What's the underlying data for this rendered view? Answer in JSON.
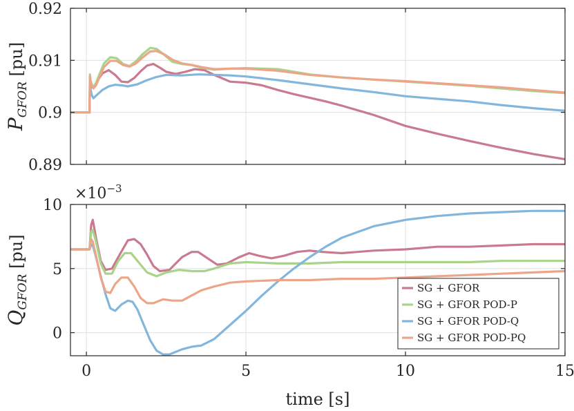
{
  "chart_data": {
    "type": "line",
    "shared_x": {
      "xlabel": "time [s]",
      "xlim": [
        -0.5,
        15
      ],
      "xticks": [
        0,
        5,
        10,
        15
      ],
      "xtick_labels": [
        "0",
        "5",
        "10",
        "15"
      ]
    },
    "legend": {
      "location": "lower-right of bottom panel",
      "entries": [
        "SG + GFOR",
        "SG + GFOR POD-P",
        "SG + GFOR POD-Q",
        "SG + GFOR POD-PQ"
      ]
    },
    "colors": {
      "SG + GFOR": "#c97a8e",
      "SG + GFOR POD-P": "#a9d38b",
      "SG + GFOR POD-Q": "#82b6dc",
      "SG + GFOR POD-PQ": "#eda58a"
    },
    "panels": [
      {
        "id": "top",
        "ylabel_main": "P",
        "ylabel_sub": "GFOR",
        "ylabel_unit": " [pu]",
        "ylim": [
          0.89,
          0.92
        ],
        "yticks": [
          0.89,
          0.9,
          0.91,
          0.92
        ],
        "ytick_labels": [
          "0.89",
          "0.9",
          "0.91",
          "0.92"
        ],
        "grid": true,
        "series": [
          {
            "name": "SG + GFOR",
            "x": [
              -0.5,
              0,
              0.1,
              0.11,
              0.12,
              0.15,
              0.18,
              0.25,
              0.35,
              0.5,
              0.7,
              0.9,
              1.1,
              1.3,
              1.5,
              1.7,
              1.9,
              2.1,
              2.3,
              2.5,
              2.8,
              3.1,
              3.4,
              3.7,
              4.0,
              4.5,
              5.0,
              5.5,
              6.0,
              6.5,
              7.0,
              7.5,
              8.0,
              9,
              10,
              11,
              12,
              13,
              14,
              15
            ],
            "y": [
              0.9,
              0.9,
              0.9,
              0.9067,
              0.9061,
              0.9051,
              0.9048,
              0.9051,
              0.9061,
              0.9075,
              0.9081,
              0.9072,
              0.9059,
              0.9058,
              0.9066,
              0.9079,
              0.909,
              0.9093,
              0.9086,
              0.9078,
              0.9074,
              0.9078,
              0.9083,
              0.9081,
              0.9072,
              0.9059,
              0.9057,
              0.9052,
              0.9043,
              0.9035,
              0.9028,
              0.9021,
              0.9013,
              0.8995,
              0.8974,
              0.8959,
              0.8945,
              0.8932,
              0.892,
              0.891
            ]
          },
          {
            "name": "SG + GFOR POD-Q",
            "x": [
              -0.5,
              0,
              0.1,
              0.11,
              0.13,
              0.17,
              0.22,
              0.3,
              0.5,
              0.7,
              0.9,
              1.1,
              1.3,
              1.6,
              1.9,
              2.2,
              2.5,
              3.0,
              3.5,
              4.0,
              4.5,
              5.0,
              6,
              7,
              8,
              9,
              10,
              11,
              12,
              13,
              14,
              15
            ],
            "y": [
              0.9,
              0.9,
              0.9,
              0.9059,
              0.9045,
              0.9033,
              0.9027,
              0.9032,
              0.9043,
              0.905,
              0.9053,
              0.9052,
              0.905,
              0.9054,
              0.9062,
              0.9068,
              0.9072,
              0.9071,
              0.9073,
              0.9072,
              0.9071,
              0.9069,
              0.9062,
              0.9054,
              0.9046,
              0.9039,
              0.9031,
              0.9026,
              0.9021,
              0.9014,
              0.9008,
              0.9003
            ]
          },
          {
            "name": "SG + GFOR POD-P",
            "x": [
              -0.5,
              0,
              0.1,
              0.11,
              0.13,
              0.17,
              0.22,
              0.3,
              0.4,
              0.55,
              0.75,
              0.95,
              1.15,
              1.35,
              1.55,
              1.75,
              2.0,
              2.2,
              2.45,
              2.7,
              3.0,
              3.3,
              3.6,
              4.0,
              4.5,
              5.0,
              6,
              7,
              8,
              9,
              10,
              11,
              12,
              13,
              14,
              15
            ],
            "y": [
              0.9,
              0.9,
              0.9,
              0.9073,
              0.9062,
              0.9054,
              0.9049,
              0.9056,
              0.9072,
              0.9094,
              0.9106,
              0.9104,
              0.9093,
              0.9089,
              0.9098,
              0.9111,
              0.9124,
              0.9122,
              0.911,
              0.9097,
              0.9093,
              0.9091,
              0.9086,
              0.9082,
              0.9084,
              0.9085,
              0.9083,
              0.9073,
              0.9067,
              0.9063,
              0.9059,
              0.9055,
              0.9051,
              0.9046,
              0.9041,
              0.9037
            ]
          },
          {
            "name": "SG + GFOR POD-PQ",
            "x": [
              -0.5,
              0,
              0.1,
              0.11,
              0.13,
              0.17,
              0.22,
              0.3,
              0.4,
              0.55,
              0.75,
              0.95,
              1.15,
              1.35,
              1.55,
              1.75,
              2.0,
              2.2,
              2.45,
              2.7,
              3.0,
              3.3,
              3.6,
              4.0,
              4.5,
              5.0,
              6,
              7,
              8,
              9,
              10,
              11,
              12,
              13,
              14,
              15
            ],
            "y": [
              0.9,
              0.9,
              0.9,
              0.9069,
              0.9058,
              0.905,
              0.9046,
              0.9052,
              0.9066,
              0.9087,
              0.9099,
              0.9099,
              0.9091,
              0.9088,
              0.9094,
              0.9105,
              0.9117,
              0.9118,
              0.9111,
              0.9101,
              0.9094,
              0.9091,
              0.9087,
              0.9083,
              0.9084,
              0.9084,
              0.908,
              0.9072,
              0.9067,
              0.9063,
              0.906,
              0.9056,
              0.9052,
              0.9048,
              0.9043,
              0.9038
            ]
          }
        ]
      },
      {
        "id": "bottom",
        "ylabel_main": "Q",
        "ylabel_sub": "GFOR",
        "ylabel_unit": " [pu]",
        "exponent_label": "×10",
        "exponent_value": "−3",
        "ylim": [
          -1.8,
          10
        ],
        "yticks": [
          0,
          5,
          10
        ],
        "ytick_labels": [
          "0",
          "5",
          "10"
        ],
        "grid": true,
        "series": [
          {
            "name": "SG + GFOR",
            "x": [
              -0.5,
              0,
              0.1,
              0.15,
              0.2,
              0.3,
              0.45,
              0.6,
              0.8,
              1.0,
              1.3,
              1.5,
              1.7,
              1.9,
              2.1,
              2.3,
              2.6,
              3.0,
              3.3,
              3.5,
              3.8,
              4.1,
              4.4,
              4.8,
              5.1,
              5.4,
              5.8,
              6.2,
              6.6,
              7.0,
              7.4,
              8.0,
              9,
              10,
              11,
              12,
              13,
              14,
              15
            ],
            "y": [
              6.5,
              6.5,
              6.5,
              8.4,
              8.8,
              7.4,
              5.6,
              4.9,
              5.0,
              5.9,
              7.2,
              7.3,
              6.9,
              6.1,
              5.2,
              4.8,
              4.9,
              5.9,
              6.3,
              6.3,
              5.8,
              5.3,
              5.4,
              5.9,
              6.2,
              6.0,
              5.8,
              6.0,
              6.3,
              6.4,
              6.3,
              6.2,
              6.4,
              6.5,
              6.7,
              6.7,
              6.8,
              6.9,
              6.9
            ]
          },
          {
            "name": "SG + GFOR POD-P",
            "x": [
              -0.5,
              0,
              0.1,
              0.15,
              0.2,
              0.3,
              0.45,
              0.6,
              0.8,
              1.0,
              1.2,
              1.4,
              1.6,
              1.9,
              2.2,
              2.5,
              2.9,
              3.3,
              3.7,
              4.0,
              4.5,
              5.0,
              6,
              7,
              8,
              9,
              10,
              11,
              12,
              13,
              14,
              15
            ],
            "y": [
              6.5,
              6.5,
              6.5,
              7.9,
              8.0,
              7.1,
              5.4,
              4.6,
              4.6,
              5.6,
              6.2,
              6.2,
              5.6,
              4.7,
              4.4,
              4.7,
              4.9,
              4.8,
              4.8,
              5.0,
              5.4,
              5.5,
              5.4,
              5.4,
              5.5,
              5.5,
              5.5,
              5.5,
              5.5,
              5.6,
              5.6,
              5.6
            ]
          },
          {
            "name": "SG + GFOR POD-Q",
            "x": [
              -0.5,
              0,
              0.1,
              0.15,
              0.2,
              0.3,
              0.45,
              0.6,
              0.75,
              0.9,
              1.1,
              1.3,
              1.45,
              1.6,
              1.8,
              2.0,
              2.2,
              2.4,
              2.6,
              2.8,
              3.0,
              3.3,
              3.6,
              4.0,
              4.5,
              5.0,
              5.5,
              6.0,
              6.5,
              7.0,
              7.5,
              8.0,
              9,
              10,
              11,
              12,
              13,
              14,
              15
            ],
            "y": [
              6.5,
              6.5,
              6.5,
              6.9,
              6.8,
              5.9,
              4.4,
              3.0,
              1.9,
              1.7,
              2.2,
              2.5,
              2.4,
              1.8,
              0.6,
              -0.6,
              -1.4,
              -1.7,
              -1.7,
              -1.5,
              -1.3,
              -1.1,
              -1.0,
              -0.5,
              0.6,
              1.7,
              2.9,
              4.0,
              5.0,
              5.9,
              6.7,
              7.4,
              8.3,
              8.8,
              9.1,
              9.3,
              9.4,
              9.5,
              9.5
            ]
          },
          {
            "name": "SG + GFOR POD-PQ",
            "x": [
              -0.5,
              0,
              0.1,
              0.15,
              0.2,
              0.3,
              0.45,
              0.6,
              0.75,
              0.9,
              1.1,
              1.3,
              1.5,
              1.7,
              1.9,
              2.1,
              2.4,
              2.7,
              3.0,
              3.3,
              3.6,
              4.0,
              4.5,
              5.0,
              6,
              7,
              8,
              9,
              10,
              11,
              12,
              13,
              14,
              15
            ],
            "y": [
              6.5,
              6.5,
              6.5,
              7.3,
              7.1,
              6.0,
              4.3,
              3.2,
              3.1,
              3.8,
              4.3,
              4.3,
              3.6,
              2.7,
              2.3,
              2.3,
              2.6,
              2.5,
              2.5,
              2.9,
              3.3,
              3.6,
              3.9,
              4.0,
              4.1,
              4.1,
              4.2,
              4.2,
              4.3,
              4.4,
              4.5,
              4.6,
              4.7,
              4.8
            ]
          }
        ]
      }
    ]
  }
}
